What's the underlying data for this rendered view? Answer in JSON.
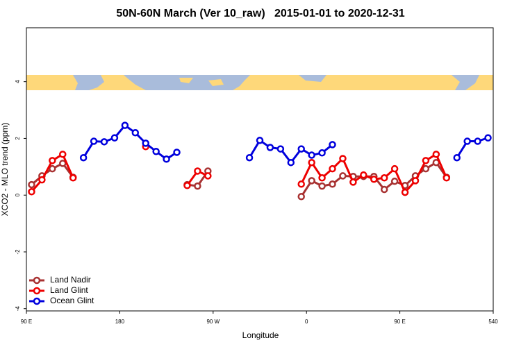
{
  "chart_data": {
    "type": "line",
    "title": "50N-60N March (Ver 10_raw)   2015-01-01 to 2020-12-31",
    "xlabel": "Longitude",
    "ylabel": "XCO2 - MLO trend (ppm)",
    "x": [
      95,
      105,
      115,
      125,
      135,
      145,
      155,
      165,
      175,
      185,
      195,
      205,
      215,
      225,
      235,
      245,
      255,
      265,
      275,
      285,
      295,
      305,
      315,
      325,
      335,
      345,
      355,
      365,
      375,
      385,
      395,
      405,
      415,
      425,
      435,
      445,
      455,
      465,
      475,
      485,
      495,
      505,
      515,
      525,
      535
    ],
    "xlim": [
      90,
      540
    ],
    "xticks": [
      {
        "value": 90,
        "label": "90 E"
      },
      180,
      {
        "value": 270,
        "label": "90 W"
      },
      {
        "value": 360,
        "label": "0"
      },
      {
        "value": 450,
        "label": "90 E"
      },
      540
    ],
    "ylim": [
      -4.08,
      5.9
    ],
    "yticks": [
      -4,
      -2,
      0,
      2,
      4
    ],
    "legend": "bottom-left",
    "series": [
      {
        "name": "Land Nadir",
        "color": "#a83232",
        "values": [
          0.37,
          0.68,
          0.93,
          1.12,
          0.63,
          null,
          null,
          null,
          null,
          null,
          null,
          null,
          null,
          null,
          null,
          0.37,
          0.32,
          0.85,
          null,
          null,
          null,
          null,
          null,
          null,
          null,
          null,
          -0.05,
          0.51,
          0.32,
          0.39,
          0.68,
          0.66,
          0.66,
          0.66,
          0.2,
          0.49,
          0.34,
          0.68,
          0.93,
          1.15,
          0.63,
          null,
          null,
          null,
          null
        ]
      },
      {
        "name": "Land Glint",
        "color": "#ee0000",
        "values": [
          0.12,
          0.54,
          1.22,
          1.44,
          0.61,
          null,
          null,
          null,
          null,
          null,
          null,
          1.71,
          null,
          null,
          null,
          0.34,
          0.85,
          0.68,
          null,
          null,
          null,
          null,
          null,
          null,
          null,
          null,
          0.39,
          1.15,
          0.61,
          0.93,
          1.29,
          0.46,
          0.71,
          0.56,
          0.61,
          0.93,
          0.1,
          0.51,
          1.22,
          1.44,
          0.61,
          null,
          null,
          null,
          null
        ]
      },
      {
        "name": "Ocean Glint",
        "color": "#0000dd",
        "values": [
          null,
          null,
          null,
          null,
          null,
          1.32,
          1.9,
          1.88,
          2.02,
          2.46,
          2.2,
          1.83,
          1.54,
          1.27,
          1.51,
          null,
          null,
          null,
          null,
          null,
          null,
          1.32,
          1.93,
          1.68,
          1.63,
          1.15,
          1.63,
          1.41,
          1.49,
          1.78,
          null,
          null,
          null,
          null,
          null,
          null,
          null,
          null,
          null,
          null,
          null,
          1.32,
          1.9,
          1.9,
          2.02
        ]
      }
    ]
  }
}
